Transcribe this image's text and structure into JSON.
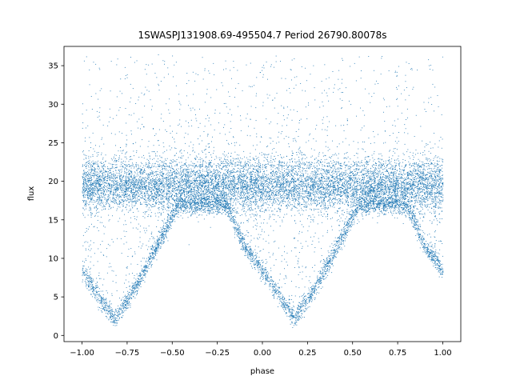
{
  "chart_data": {
    "type": "scatter",
    "title": "1SWASPJ131908.69-495504.7 Period 26790.80078s",
    "xlabel": "phase",
    "ylabel": "flux",
    "xlim": [
      -1.1,
      1.1
    ],
    "ylim": [
      -0.8,
      37.5
    ],
    "xticks": [
      -1.0,
      -0.75,
      -0.5,
      -0.25,
      0.0,
      0.25,
      0.5,
      0.75,
      1.0
    ],
    "xtick_labels": [
      "−1.00",
      "−0.75",
      "−0.50",
      "−0.25",
      "0.00",
      "0.25",
      "0.50",
      "0.75",
      "1.00"
    ],
    "yticks": [
      0,
      5,
      10,
      15,
      20,
      25,
      30,
      35
    ],
    "ytick_labels": [
      "0",
      "5",
      "10",
      "15",
      "20",
      "25",
      "30",
      "35"
    ],
    "grid": false,
    "legend": "none",
    "marker_color": "#1f77b4",
    "series": [
      {
        "baseline": {
          "flux": 19.5,
          "spread": 1.6
        },
        "eclipse_minima": [
          {
            "phase": -0.82,
            "flux": 2.2,
            "half_width": 0.36
          },
          {
            "phase": 0.18,
            "flux": 2.2,
            "half_width": 0.36
          }
        ],
        "envelope": [
          {
            "phase": -1.0,
            "flux": 8.5
          },
          {
            "phase": -0.9,
            "flux": 4.8
          },
          {
            "phase": -0.82,
            "flux": 2.2
          },
          {
            "phase": -0.7,
            "flux": 6.5
          },
          {
            "phase": -0.6,
            "flux": 11.0
          },
          {
            "phase": -0.5,
            "flux": 15.5
          },
          {
            "phase": -0.46,
            "flux": 17.0
          },
          {
            "phase": -0.2,
            "flux": 17.0
          },
          {
            "phase": -0.1,
            "flux": 11.5
          },
          {
            "phase": 0.0,
            "flux": 8.5
          },
          {
            "phase": 0.1,
            "flux": 4.8
          },
          {
            "phase": 0.18,
            "flux": 2.2
          },
          {
            "phase": 0.3,
            "flux": 6.5
          },
          {
            "phase": 0.4,
            "flux": 11.0
          },
          {
            "phase": 0.5,
            "flux": 15.5
          },
          {
            "phase": 0.54,
            "flux": 17.0
          },
          {
            "phase": 0.8,
            "flux": 17.0
          },
          {
            "phase": 0.9,
            "flux": 11.5
          },
          {
            "phase": 1.0,
            "flux": 8.5
          }
        ],
        "outlier_range": [
          20,
          36.5
        ]
      }
    ]
  }
}
